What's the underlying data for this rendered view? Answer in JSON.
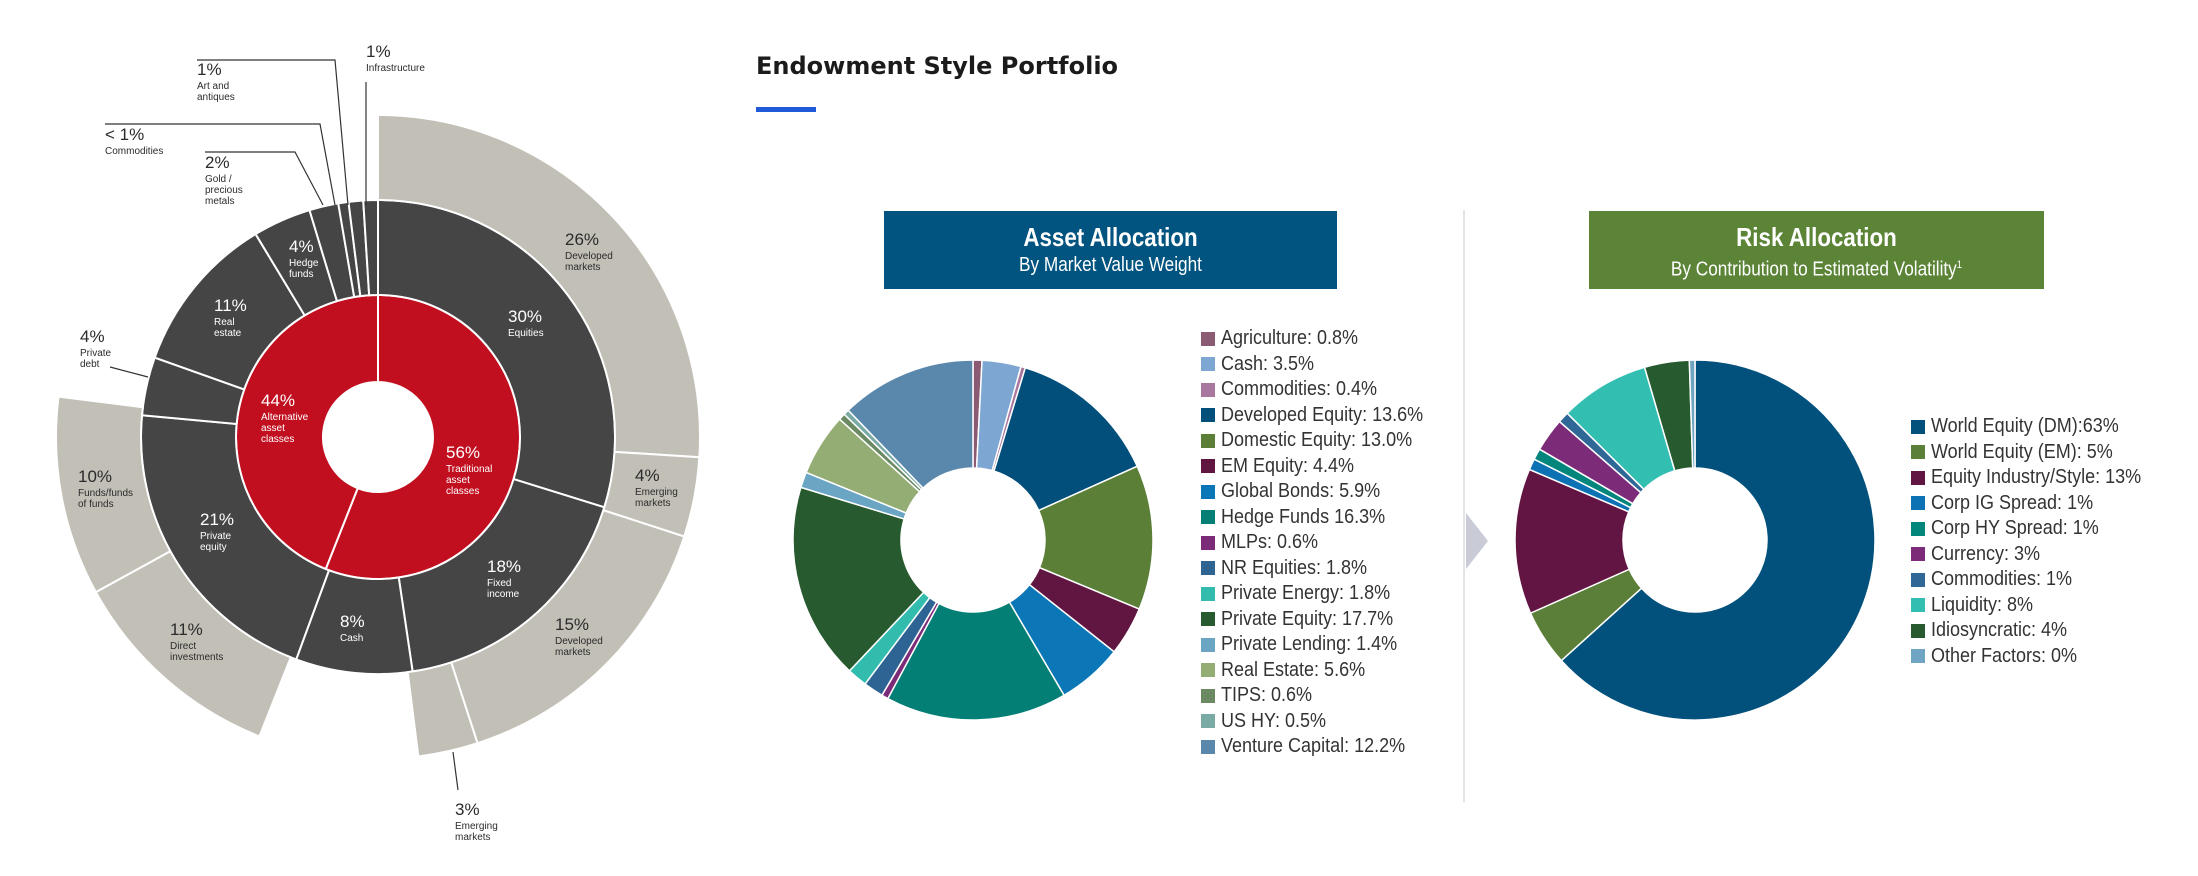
{
  "header": {
    "title": "Endowment Style Portfolio"
  },
  "colors": {
    "underline": "#1f5bd8",
    "asset_banner": "#01547f",
    "risk_banner": "#5c8437"
  },
  "asset_allocation": {
    "title": "Asset Allocation",
    "subtitle": "By Market Value Weight"
  },
  "risk_allocation": {
    "title": "Risk Allocation",
    "subtitle": "By Contribution to Estimated Volatility",
    "subtitle_note": "1"
  },
  "chart_data": [
    {
      "type": "pie",
      "variant": "sunburst",
      "rings": {
        "inner": [
          {
            "pct": "56%",
            "label": "Traditional asset classes",
            "value": 56,
            "color": "#c10f1f"
          },
          {
            "pct": "44%",
            "label": "Alternative asset classes",
            "value": 44,
            "color": "#c10f1f"
          }
        ],
        "middle": [
          {
            "pct": "30%",
            "label": "Equities",
            "value": 30,
            "color": "#454545"
          },
          {
            "pct": "18%",
            "label": "Fixed income",
            "value": 18,
            "color": "#454545"
          },
          {
            "pct": "8%",
            "label": "Cash",
            "value": 8,
            "color": "#454545"
          },
          {
            "pct": "21%",
            "label": "Private equity",
            "value": 21,
            "color": "#454545"
          },
          {
            "pct": "4%",
            "label": "Private debt",
            "value": 4,
            "color": "#454545"
          },
          {
            "pct": "11%",
            "label": "Real estate",
            "value": 11,
            "color": "#454545"
          },
          {
            "pct": "4%",
            "label": "Hedge funds",
            "value": 4,
            "color": "#454545"
          },
          {
            "pct": "2%",
            "label": "Gold / precious metals",
            "value": 2,
            "color": "#454545"
          },
          {
            "pct": "< 1%",
            "label": "Commodities",
            "value": 0.7,
            "color": "#454545"
          },
          {
            "pct": "1%",
            "label": "Art and antiques",
            "value": 1,
            "color": "#454545"
          },
          {
            "pct": "1%",
            "label": "Infrastructure",
            "value": 1,
            "color": "#454545"
          }
        ],
        "outer": [
          {
            "pct": "26%",
            "label": "Developed markets",
            "value": 26,
            "start": 0,
            "end": 26
          },
          {
            "pct": "4%",
            "label": "Emerging markets",
            "value": 4,
            "start": 26,
            "end": 30
          },
          {
            "pct": "15%",
            "label": "Developed markets",
            "value": 15,
            "start": 30,
            "end": 45
          },
          {
            "pct": "3%",
            "label": "Emerging markets",
            "value": 3,
            "start": 45,
            "end": 48
          },
          {
            "pct": "11%",
            "label": "Direct investments",
            "value": 11,
            "start": 56,
            "end": 67
          },
          {
            "pct": "10%",
            "label": "Funds/funds of funds",
            "value": 10,
            "start": 67,
            "end": 77
          }
        ]
      }
    },
    {
      "type": "pie",
      "variant": "donut",
      "title": "Asset Allocation",
      "subtitle": "By Market Value Weight",
      "slices": [
        {
          "name": "Agriculture",
          "label": "Agriculture: 0.8%",
          "value": 0.8,
          "color": "#8b5a73"
        },
        {
          "name": "Cash",
          "label": "Cash: 3.5%",
          "value": 3.5,
          "color": "#7ea6d3"
        },
        {
          "name": "Commodities",
          "label": "Commodities: 0.4%",
          "value": 0.4,
          "color": "#a9779e"
        },
        {
          "name": "Developed Equity",
          "label": "Developed Equity: 13.6%",
          "value": 13.6,
          "color": "#024f7b"
        },
        {
          "name": "Domestic Equity",
          "label": "Domestic Equity: 13.0%",
          "value": 13.0,
          "color": "#5c7f38"
        },
        {
          "name": "EM Equity",
          "label": "EM Equity: 4.4%",
          "value": 4.4,
          "color": "#611541"
        },
        {
          "name": "Global Bonds",
          "label": "Global Bonds: 5.9%",
          "value": 5.9,
          "color": "#0b77b6"
        },
        {
          "name": "Hedge Funds",
          "label": "Hedge Funds 16.3%",
          "value": 16.3,
          "color": "#037f75"
        },
        {
          "name": "MLPs",
          "label": "MLPs: 0.6%",
          "value": 0.6,
          "color": "#7c2b78"
        },
        {
          "name": "NR Equities",
          "label": "NR Equities: 1.8%",
          "value": 1.8,
          "color": "#2e6493"
        },
        {
          "name": "Private Energy",
          "label": "Private Energy: 1.8%",
          "value": 1.8,
          "color": "#31bcae"
        },
        {
          "name": "Private Equity",
          "label": "Private Equity: 17.7%",
          "value": 17.7,
          "color": "#275a2f"
        },
        {
          "name": "Private Lending",
          "label": "Private Lending: 1.4%",
          "value": 1.4,
          "color": "#6aa5c4"
        },
        {
          "name": "Real Estate",
          "label": "Real Estate: 5.6%",
          "value": 5.6,
          "color": "#93ad74"
        },
        {
          "name": "TIPS",
          "label": "TIPS: 0.6%",
          "value": 0.6,
          "color": "#6b8a63"
        },
        {
          "name": "US HY",
          "label": "US HY: 0.5%",
          "value": 0.5,
          "color": "#7aaaa4"
        },
        {
          "name": "Venture Capital",
          "label": "Venture Capital: 12.2%",
          "value": 12.2,
          "color": "#5a88ad"
        }
      ]
    },
    {
      "type": "pie",
      "variant": "donut",
      "title": "Risk Allocation",
      "subtitle": "By Contribution to Estimated Volatility",
      "slices": [
        {
          "name": "World Equity (DM)",
          "label": "World Equity (DM):63%",
          "value": 63,
          "color": "#02517d"
        },
        {
          "name": "World Equity (EM)",
          "label": "World Equity (EM): 5%",
          "value": 5,
          "color": "#5b7f38"
        },
        {
          "name": "Equity Industry/Style",
          "label": "Equity Industry/Style: 13%",
          "value": 13,
          "color": "#621542"
        },
        {
          "name": "Corp IG Spread",
          "label": "Corp IG Spread: 1%",
          "value": 1,
          "color": "#0c72b4"
        },
        {
          "name": "Corp HY Spread",
          "label": "Corp HY Spread: 1%",
          "value": 1,
          "color": "#02857b"
        },
        {
          "name": "Currency",
          "label": "Currency: 3%",
          "value": 3,
          "color": "#7c2b78"
        },
        {
          "name": "Commodities",
          "label": "Commodities: 1%",
          "value": 1,
          "color": "#2f6796"
        },
        {
          "name": "Liquidity",
          "label": "Liquidity: 8%",
          "value": 8,
          "color": "#33beb2"
        },
        {
          "name": "Idiosyncratic",
          "label": "Idiosyncratic: 4%",
          "value": 4,
          "color": "#275a2f"
        },
        {
          "name": "Other Factors",
          "label": "Other Factors: 0%",
          "value": 0.5,
          "color": "#6fa4c3"
        }
      ]
    }
  ]
}
